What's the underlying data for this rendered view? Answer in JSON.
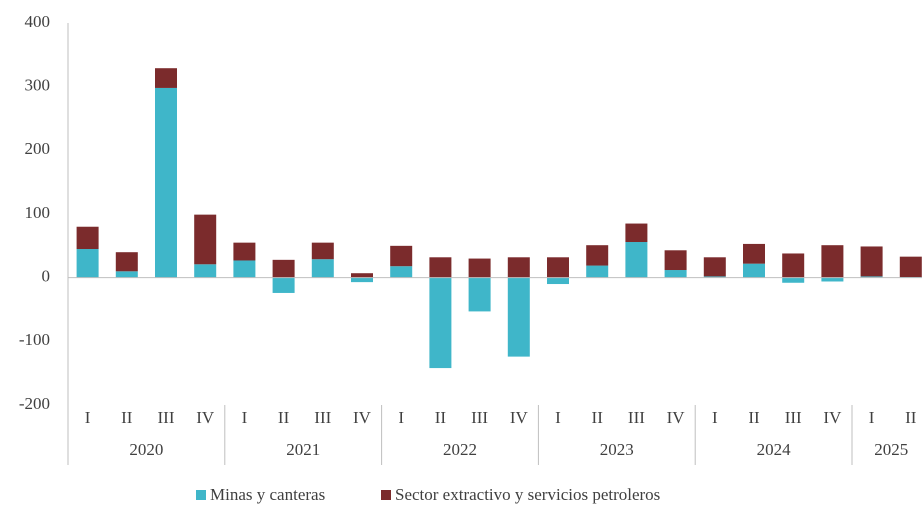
{
  "chart_data": {
    "type": "stacked_bar",
    "groups": [
      {
        "name": "2020",
        "categories": [
          "I",
          "II",
          "III",
          "IV"
        ]
      },
      {
        "name": "2021",
        "categories": [
          "I",
          "II",
          "III",
          "IV"
        ]
      },
      {
        "name": "2022",
        "categories": [
          "I",
          "II",
          "III",
          "IV"
        ]
      },
      {
        "name": "2023",
        "categories": [
          "I",
          "II",
          "III",
          "IV"
        ]
      },
      {
        "name": "2024",
        "categories": [
          "I",
          "II",
          "III",
          "IV"
        ]
      },
      {
        "name": "2025",
        "categories": [
          "I",
          "II"
        ]
      }
    ],
    "series": [
      {
        "name": "Minas y canteras",
        "color": "#3fb6c9",
        "values": [
          45,
          10,
          298,
          21,
          27,
          -24,
          29,
          -7,
          18,
          -142,
          -53,
          -124,
          -10,
          19,
          56,
          12,
          2,
          22,
          -8,
          -6,
          2,
          1
        ]
      },
      {
        "name": "Sector extractivo y servicios petroleros",
        "color": "#7b2b2c",
        "values": [
          35,
          30,
          31,
          78,
          28,
          28,
          26,
          7,
          32,
          32,
          30,
          32,
          32,
          32,
          29,
          31,
          30,
          31,
          38,
          51,
          47,
          32
        ]
      }
    ],
    "ylim": [
      -200,
      400
    ],
    "yticks": [
      -200,
      -100,
      0,
      100,
      200,
      300,
      400
    ],
    "grid": false,
    "legend": "bottom"
  }
}
